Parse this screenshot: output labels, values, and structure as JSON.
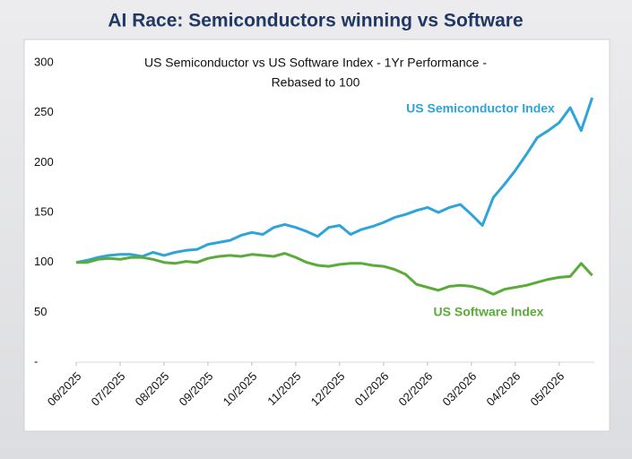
{
  "chart_data": {
    "type": "line",
    "title": "AI Race:  Semiconductors winning vs Software",
    "subtitle": [
      "US Semiconductor vs US Software Index - 1Yr Performance -",
      "Rebased to 100"
    ],
    "x": [
      0,
      0.25,
      0.5,
      0.75,
      1,
      1.25,
      1.5,
      1.75,
      2,
      2.25,
      2.5,
      2.75,
      3,
      3.25,
      3.5,
      3.75,
      4,
      4.25,
      4.5,
      4.75,
      5,
      5.25,
      5.5,
      5.75,
      6,
      6.25,
      6.5,
      6.75,
      7,
      7.25,
      7.5,
      7.75,
      8,
      8.25,
      8.5,
      8.75,
      9,
      9.25,
      9.5,
      9.75,
      10,
      10.25,
      10.5,
      10.75,
      11,
      11.25,
      11.5,
      11.75
    ],
    "xlim": [
      0,
      11.8
    ],
    "xticks": [
      {
        "value": 0,
        "label": "06/2025"
      },
      {
        "value": 1,
        "label": "07/2025"
      },
      {
        "value": 2,
        "label": "08/2025"
      },
      {
        "value": 3,
        "label": "09/2025"
      },
      {
        "value": 4,
        "label": "10/2025"
      },
      {
        "value": 5,
        "label": "11/2025"
      },
      {
        "value": 6,
        "label": "12/2025"
      },
      {
        "value": 7,
        "label": "01/2026"
      },
      {
        "value": 8,
        "label": "02/2026"
      },
      {
        "value": 9,
        "label": "03/2026"
      },
      {
        "value": 10,
        "label": "04/2026"
      },
      {
        "value": 11,
        "label": "05/2026"
      }
    ],
    "ylim": [
      0,
      300
    ],
    "yticks": [
      {
        "value": 0,
        "label": "-"
      },
      50,
      100,
      150,
      200,
      250,
      300
    ],
    "series": [
      {
        "name": "US Semiconductor Index",
        "color": "#2ea4d8",
        "values": [
          100,
          102,
          105,
          107,
          108,
          108,
          106,
          110,
          107,
          110,
          112,
          113,
          118,
          120,
          122,
          127,
          130,
          128,
          135,
          138,
          135,
          131,
          126,
          135,
          137,
          128,
          133,
          136,
          140,
          145,
          148,
          152,
          155,
          150,
          155,
          158,
          148,
          137,
          165,
          178,
          192,
          208,
          225,
          232,
          240,
          255,
          232,
          265
        ]
      },
      {
        "name": "US Software Index",
        "color": "#5aab3a",
        "values": [
          100,
          100,
          103,
          104,
          103,
          105,
          105,
          103,
          100,
          99,
          101,
          100,
          104,
          106,
          107,
          106,
          108,
          107,
          106,
          109,
          105,
          100,
          97,
          96,
          98,
          99,
          99,
          97,
          96,
          93,
          88,
          78,
          75,
          72,
          76,
          77,
          76,
          73,
          68,
          73,
          75,
          77,
          80,
          83,
          85,
          86,
          99,
          87
        ]
      }
    ]
  }
}
